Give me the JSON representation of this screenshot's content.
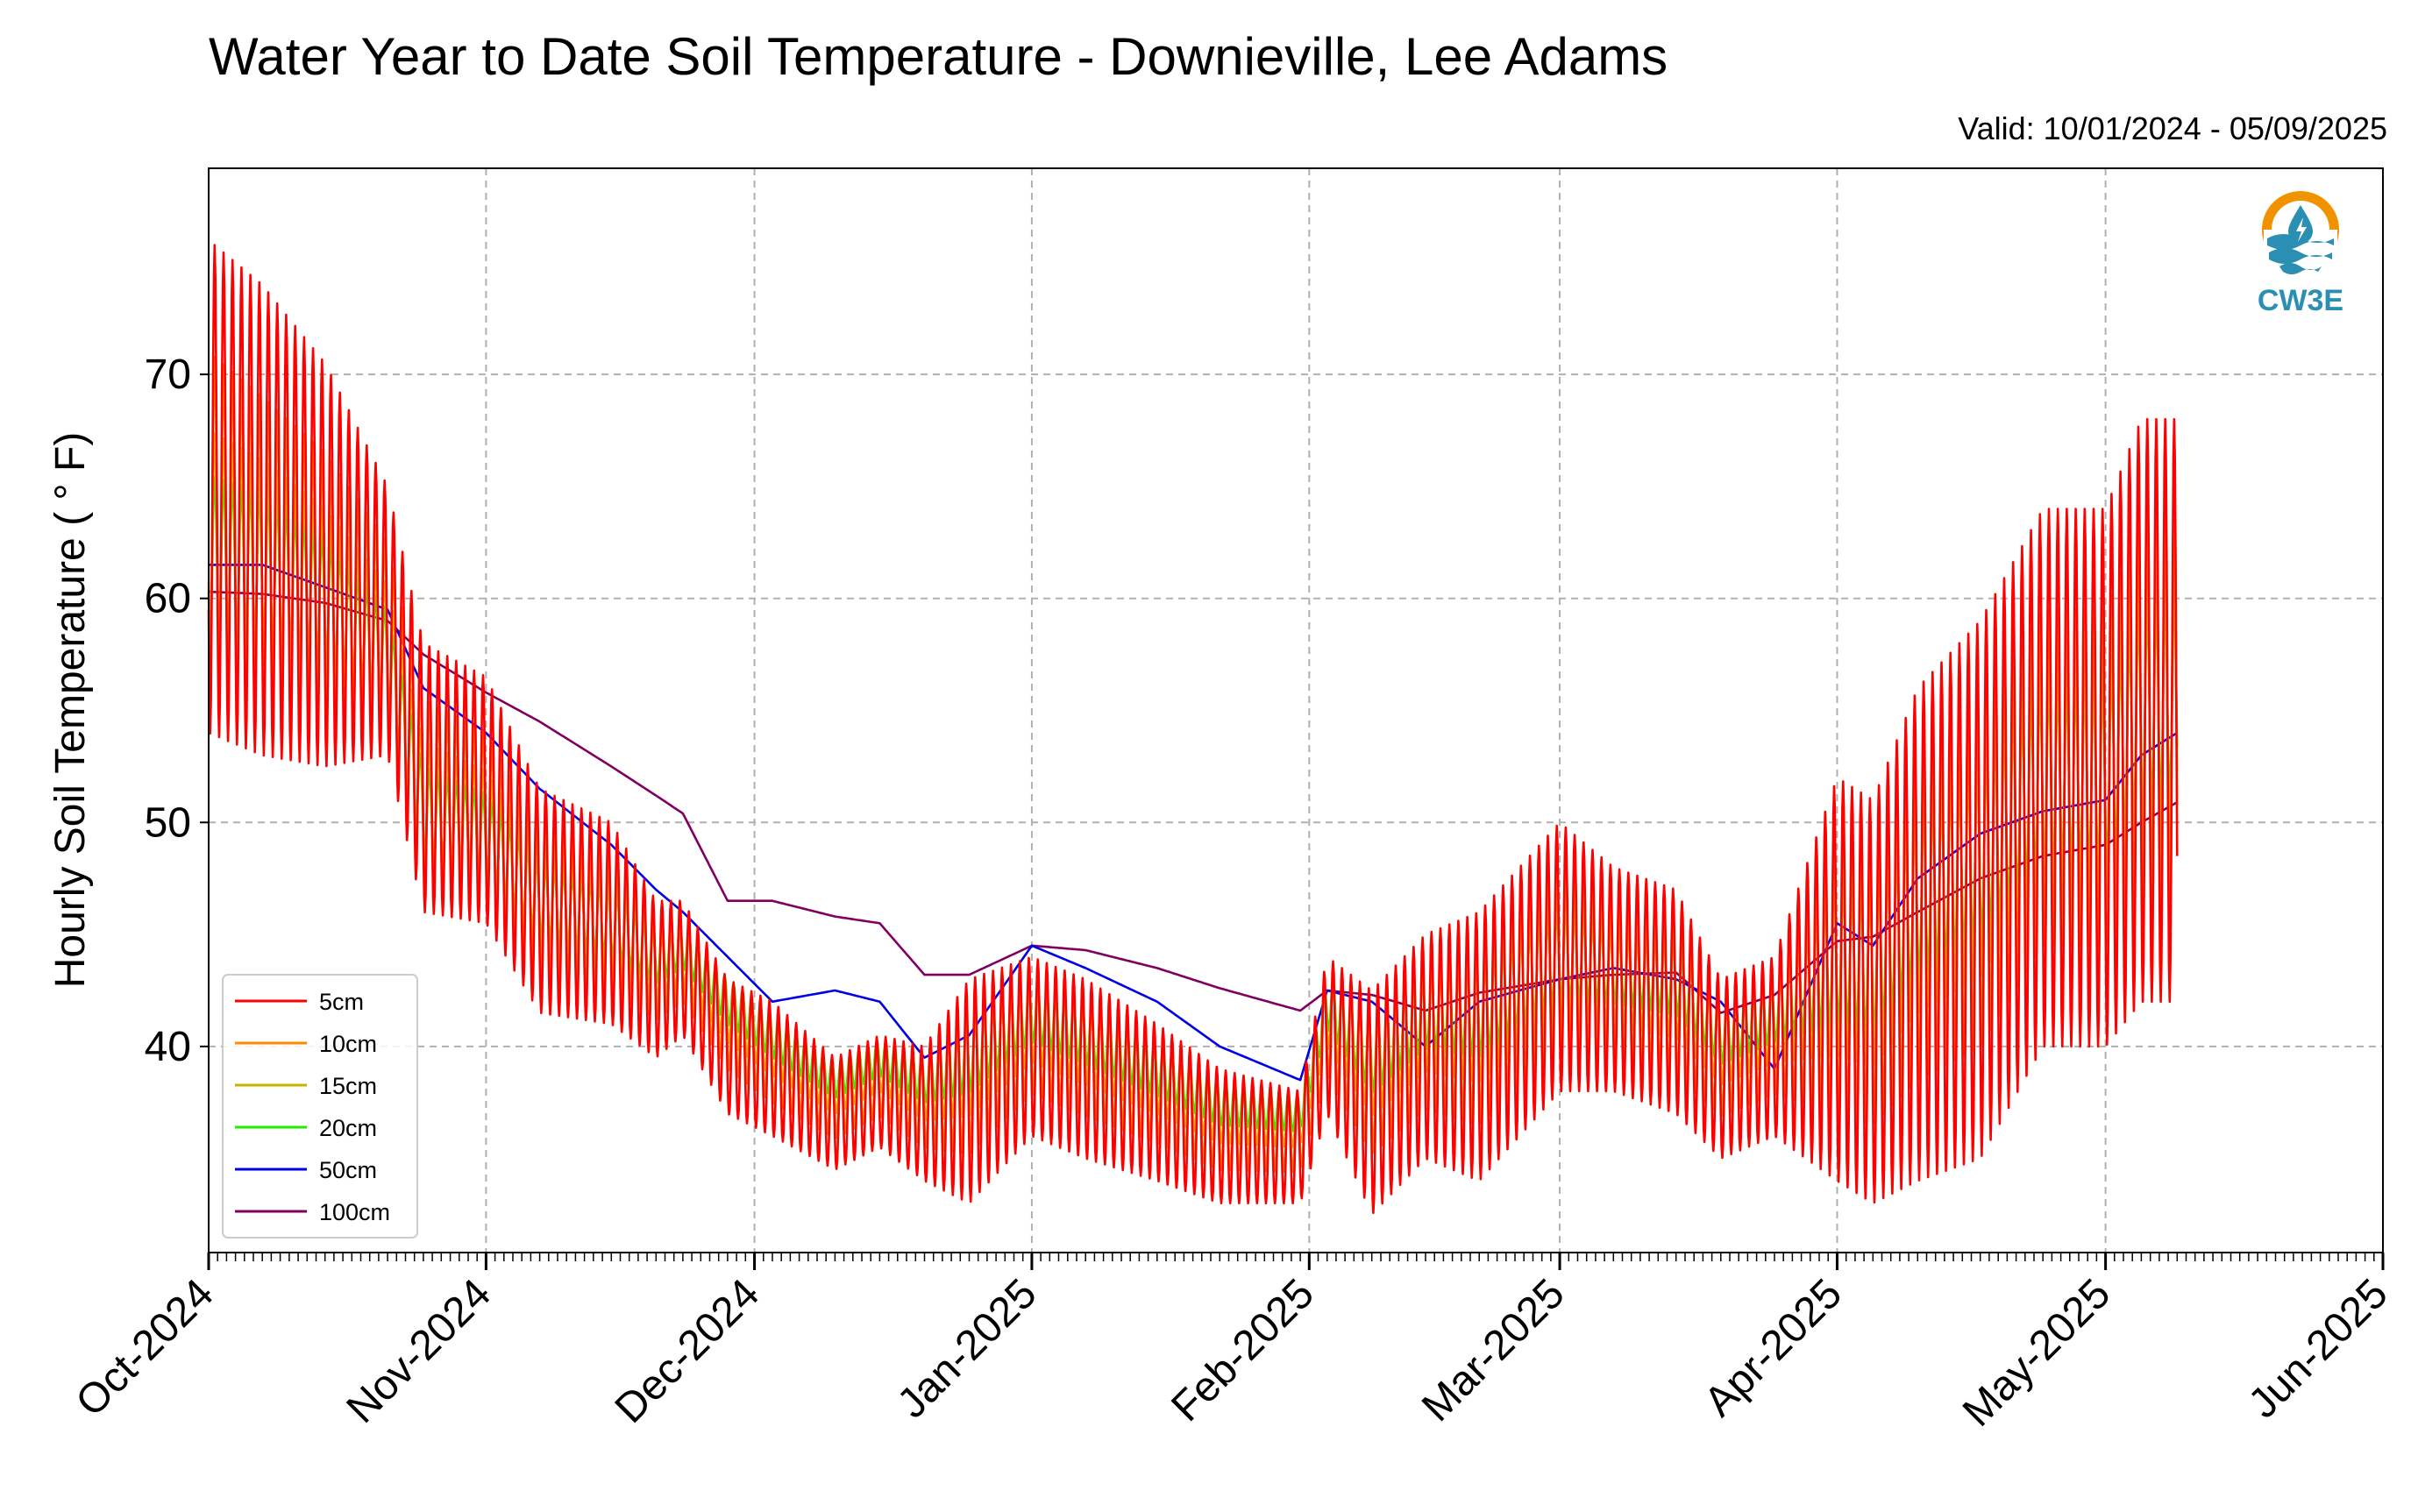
{
  "title": "Water Year to Date Soil Temperature - Downieville, Lee Adams",
  "valid": "Valid: 10/01/2024 - 05/09/2025",
  "logo": {
    "text": "CW3E",
    "icon": "water-drop-logo-icon",
    "ring_color": "#f39200",
    "wave_color": "#2b8fb4"
  },
  "chart_data": {
    "type": "line",
    "title": "Water Year to Date Soil Temperature - Downieville, Lee Adams",
    "xlabel": "",
    "ylabel": "Hourly Soil Temperature ( ° F)",
    "x_start": "2024-10-01",
    "x_end": "2025-06-01",
    "x_ticks": [
      "Oct-2024",
      "Nov-2024",
      "Dec-2024",
      "Jan-2025",
      "Feb-2025",
      "Mar-2025",
      "Apr-2025",
      "May-2025",
      "Jun-2025"
    ],
    "x_tick_dates": [
      "2024-10-01",
      "2024-11-01",
      "2024-12-01",
      "2025-01-01",
      "2025-02-01",
      "2025-03-01",
      "2025-04-01",
      "2025-05-01",
      "2025-06-01"
    ],
    "ylim": [
      30.8,
      79.2
    ],
    "y_ticks": [
      40,
      50,
      60,
      70
    ],
    "grid": true,
    "legend_position": "lower-left",
    "data_end": "2025-05-09",
    "dates": [
      "2024-10-01",
      "2024-10-07",
      "2024-10-14",
      "2024-10-21",
      "2024-10-25",
      "2024-11-01",
      "2024-11-07",
      "2024-11-15",
      "2024-11-20",
      "2024-11-23",
      "2024-11-28",
      "2024-12-03",
      "2024-12-10",
      "2024-12-15",
      "2024-12-20",
      "2024-12-25",
      "2025-01-01",
      "2025-01-07",
      "2025-01-15",
      "2025-01-22",
      "2025-01-31",
      "2025-02-03",
      "2025-02-08",
      "2025-02-14",
      "2025-02-20",
      "2025-03-01",
      "2025-03-07",
      "2025-03-14",
      "2025-03-19",
      "2025-03-25",
      "2025-04-01",
      "2025-04-05",
      "2025-04-10",
      "2025-04-17",
      "2025-04-24",
      "2025-05-01",
      "2025-05-05",
      "2025-05-09"
    ],
    "series": [
      {
        "name": "5cm",
        "color": "#ff0000",
        "mean": [
          65,
          63.5,
          61.5,
          59,
          52,
          51,
          46.5,
          45.5,
          43,
          43.5,
          40,
          39,
          37,
          38,
          37,
          38,
          40,
          39,
          37.5,
          36,
          35.5,
          40.5,
          37.5,
          40,
          40,
          44,
          43,
          42,
          39,
          40,
          43,
          42,
          45,
          47,
          52,
          52,
          55,
          55
        ],
        "amp": [
          11,
          10.5,
          9,
          6,
          6,
          5.5,
          5,
          4.5,
          3.5,
          3,
          3,
          3,
          2.5,
          2.5,
          3,
          5,
          4,
          4,
          3.5,
          3,
          2.5,
          3.5,
          5,
          5,
          6,
          6,
          5,
          5,
          4,
          4,
          9,
          9,
          11,
          12,
          12,
          12,
          13,
          13
        ]
      },
      {
        "name": "10cm",
        "color": "#ff8c00",
        "mean": [
          64,
          62.5,
          61,
          58.5,
          51.5,
          50.5,
          46.5,
          45.5,
          43.5,
          44,
          41,
          39.5,
          37.5,
          38.5,
          37.5,
          38.5,
          40.5,
          39.5,
          38,
          36.5,
          36,
          41,
          38.5,
          40.5,
          40.5,
          44,
          43,
          42,
          39.5,
          40.5,
          43,
          42.5,
          45.5,
          47.5,
          52,
          52,
          55,
          55
        ],
        "amp": [
          7,
          6.5,
          5.5,
          4,
          4,
          3.5,
          3.2,
          3,
          2.3,
          2,
          2,
          2,
          1.6,
          1.6,
          2,
          3.3,
          2.6,
          2.6,
          2.3,
          2,
          1.6,
          2.3,
          3.3,
          3.3,
          4,
          4,
          3.3,
          3.3,
          2.6,
          2.6,
          6,
          6,
          7,
          7.5,
          7.5,
          7.5,
          8.5,
          8.5
        ]
      },
      {
        "name": "15cm",
        "color": "#c8b400",
        "mean": [
          63,
          62,
          60.5,
          58,
          51,
          50,
          46.5,
          45.5,
          43.5,
          44,
          41.5,
          40,
          38,
          39,
          38,
          39,
          41,
          40,
          38.5,
          37,
          36.5,
          41.5,
          39,
          41,
          41,
          44,
          43,
          42.5,
          40,
          41,
          43.5,
          43,
          46,
          48,
          52,
          52,
          55,
          55
        ],
        "amp": [
          4.5,
          4.2,
          3.5,
          2.6,
          2.6,
          2.3,
          2.1,
          2,
          1.5,
          1.3,
          1.3,
          1.3,
          1,
          1,
          1.3,
          2.1,
          1.7,
          1.7,
          1.5,
          1.3,
          1,
          1.5,
          2.1,
          2.1,
          2.6,
          2.6,
          2.1,
          2.1,
          1.7,
          1.7,
          3.9,
          3.9,
          4.5,
          4.9,
          4.9,
          4.9,
          5.5,
          5.5
        ]
      },
      {
        "name": "20cm",
        "color": "#22ee00",
        "mean": [
          62,
          61.5,
          60,
          57.5,
          50.5,
          49.5,
          46.5,
          45.5,
          44,
          44.5,
          42,
          40.5,
          38.5,
          39.5,
          38.5,
          39.5,
          41.5,
          40.5,
          39,
          37.5,
          37,
          42,
          39.5,
          41.5,
          41.5,
          44,
          43.5,
          43,
          40.5,
          41.5,
          44,
          43.5,
          46.5,
          48.5,
          52,
          52,
          55,
          55.5
        ],
        "amp": [
          3.5,
          3.3,
          2.8,
          2,
          2,
          1.8,
          1.6,
          1.5,
          1.2,
          1,
          1,
          1,
          0.8,
          0.8,
          1,
          1.6,
          1.3,
          1.3,
          1.2,
          1,
          0.8,
          1.2,
          1.6,
          1.6,
          2,
          2,
          1.6,
          1.6,
          1.3,
          1.3,
          3,
          3,
          3.5,
          3.8,
          3.8,
          3.8,
          4.3,
          4.3
        ]
      },
      {
        "name": "50cm",
        "color": "#0000e6",
        "values": [
          61.5,
          61.5,
          60.5,
          59.5,
          56,
          54,
          51.5,
          49,
          47,
          46,
          44,
          42,
          42.5,
          42,
          39.5,
          40.5,
          44.5,
          43.5,
          42,
          40,
          38.5,
          42.5,
          42,
          40,
          42,
          43,
          43.5,
          43,
          42,
          39,
          45.5,
          44.5,
          47.5,
          49.5,
          50.5,
          51,
          53,
          54
        ]
      },
      {
        "name": "100cm",
        "color": "#800060",
        "values": [
          60.3,
          60.2,
          59.8,
          59,
          57.5,
          55.8,
          54.5,
          52.5,
          51.2,
          50.4,
          46.5,
          46.5,
          45.8,
          45.5,
          43.2,
          43.2,
          44.5,
          44.3,
          43.5,
          42.6,
          41.6,
          42.5,
          42.3,
          41.6,
          42.4,
          43,
          43.2,
          43.3,
          41.5,
          42.3,
          44.7,
          44.9,
          46,
          47.5,
          48.5,
          49,
          50,
          50.9
        ]
      }
    ]
  }
}
